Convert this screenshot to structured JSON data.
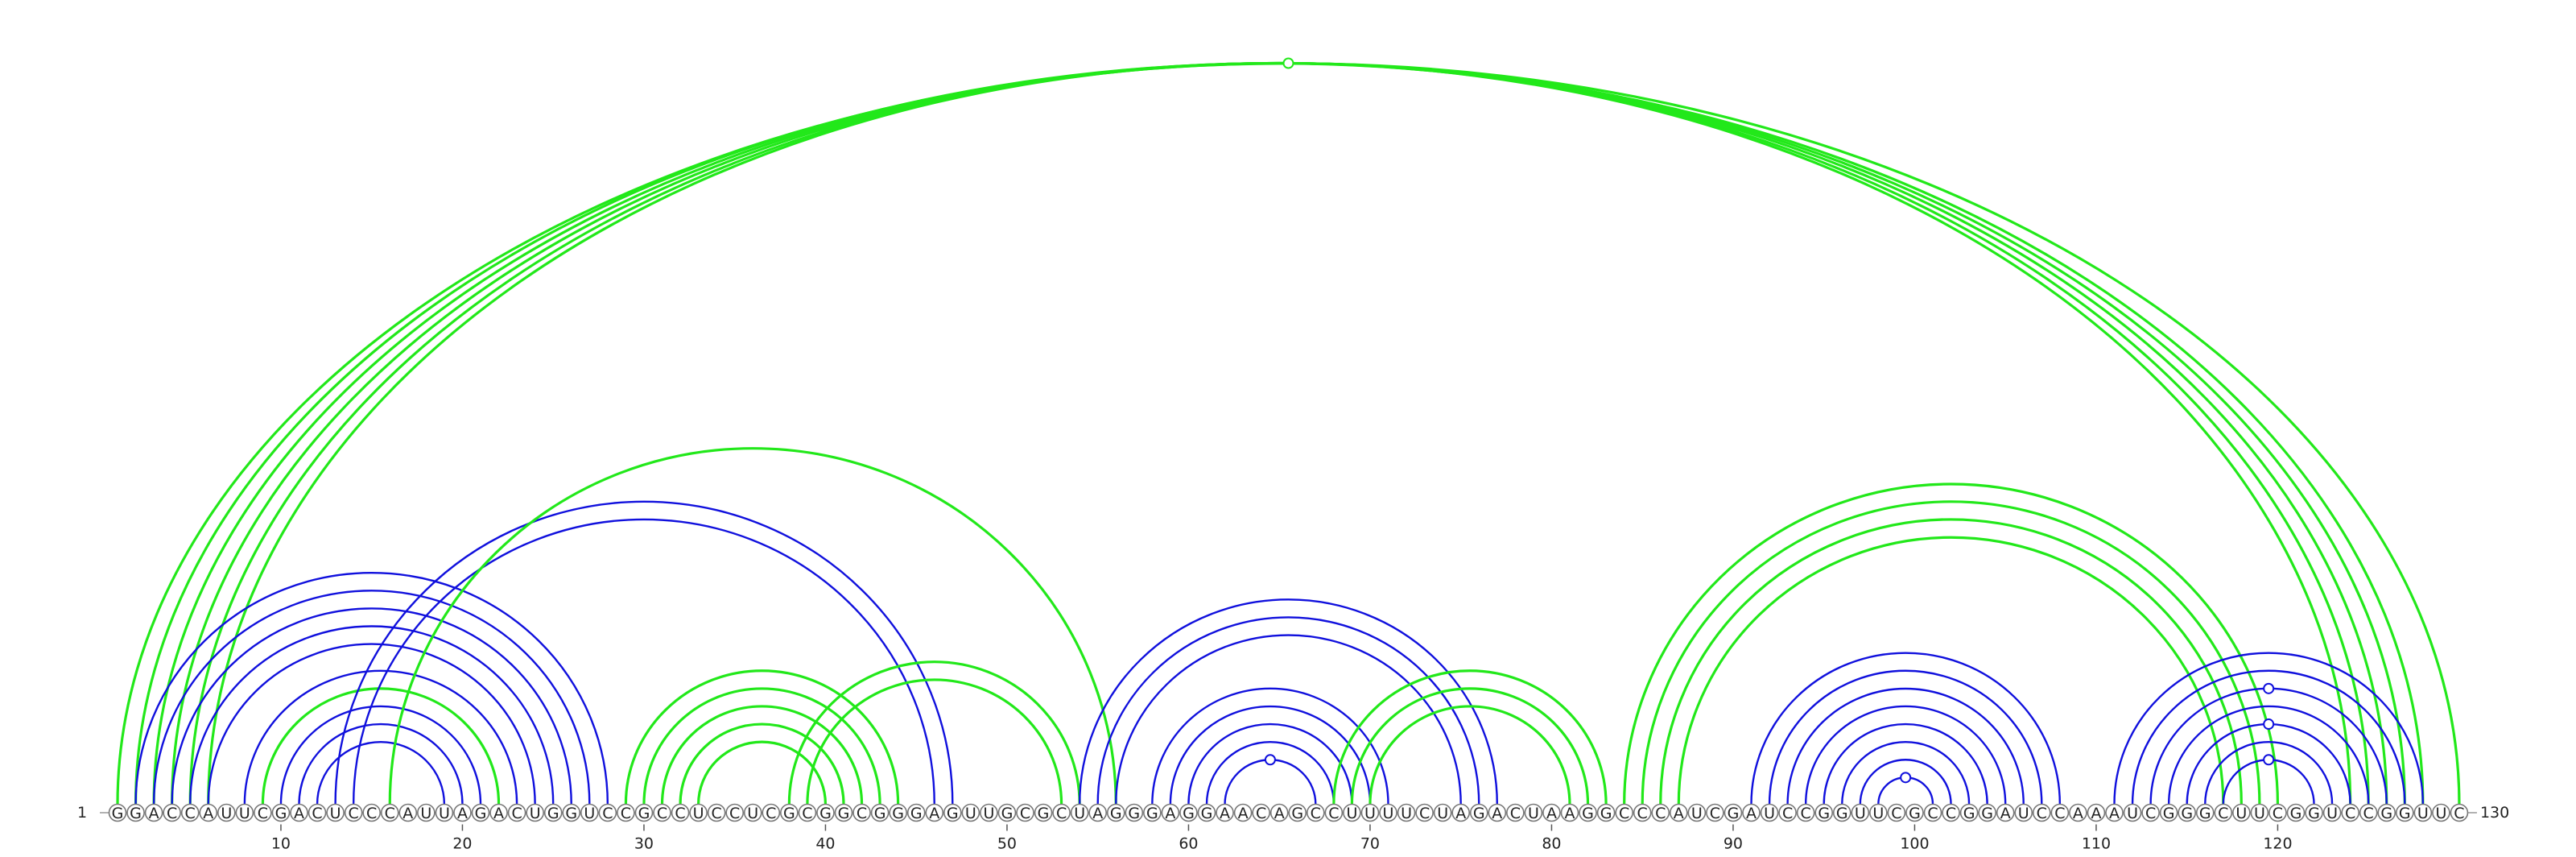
{
  "diagram": {
    "type": "rna-arc-diagram",
    "start_label": "1",
    "end_label": "130",
    "sequence": "GGACCAUUCGACUCCCAUUAGACUGGUCCGCCUCCUCGCGGCGGGAGUUGCGCUAGGGAGGAACAGCCUUUUCUAGACUAAGGCCCAUCGAUCCGGUUCGCCGGAUCCAAAUCGGGCUUCGGUCCGGUUC",
    "ticks": [
      10,
      20,
      30,
      40,
      50,
      60,
      70,
      80,
      90,
      100,
      110,
      120
    ],
    "colors": {
      "blue": "#1010dd",
      "green": "#22e81a",
      "nucleotide_border": "#777777"
    },
    "arcs": [
      {
        "i": 1,
        "j": 130,
        "color": "green"
      },
      {
        "i": 2,
        "j": 128,
        "color": "green"
      },
      {
        "i": 3,
        "j": 127,
        "color": "green"
      },
      {
        "i": 4,
        "j": 126,
        "color": "green"
      },
      {
        "i": 5,
        "j": 125,
        "color": "green"
      },
      {
        "i": 6,
        "j": 124,
        "color": "green"
      },
      {
        "i": 2,
        "j": 28,
        "color": "blue"
      },
      {
        "i": 3,
        "j": 27,
        "color": "blue"
      },
      {
        "i": 4,
        "j": 26,
        "color": "blue"
      },
      {
        "i": 5,
        "j": 25,
        "color": "blue"
      },
      {
        "i": 6,
        "j": 24,
        "color": "blue"
      },
      {
        "i": 8,
        "j": 23,
        "color": "blue"
      },
      {
        "i": 9,
        "j": 22,
        "color": "green"
      },
      {
        "i": 10,
        "j": 21,
        "color": "blue"
      },
      {
        "i": 11,
        "j": 20,
        "color": "blue"
      },
      {
        "i": 12,
        "j": 19,
        "color": "blue"
      },
      {
        "i": 13,
        "j": 47,
        "color": "blue"
      },
      {
        "i": 14,
        "j": 46,
        "color": "blue"
      },
      {
        "i": 16,
        "j": 56,
        "color": "green"
      },
      {
        "i": 29,
        "j": 44,
        "color": "green"
      },
      {
        "i": 30,
        "j": 43,
        "color": "green"
      },
      {
        "i": 31,
        "j": 42,
        "color": "green"
      },
      {
        "i": 32,
        "j": 41,
        "color": "green"
      },
      {
        "i": 33,
        "j": 40,
        "color": "green"
      },
      {
        "i": 38,
        "j": 54,
        "color": "green"
      },
      {
        "i": 39,
        "j": 53,
        "color": "green"
      },
      {
        "i": 54,
        "j": 77,
        "color": "blue"
      },
      {
        "i": 55,
        "j": 76,
        "color": "blue"
      },
      {
        "i": 56,
        "j": 75,
        "color": "blue"
      },
      {
        "i": 58,
        "j": 71,
        "color": "blue"
      },
      {
        "i": 59,
        "j": 70,
        "color": "blue"
      },
      {
        "i": 60,
        "j": 69,
        "color": "blue"
      },
      {
        "i": 61,
        "j": 68,
        "color": "blue"
      },
      {
        "i": 62,
        "j": 67,
        "color": "blue"
      },
      {
        "i": 68,
        "j": 83,
        "color": "green"
      },
      {
        "i": 69,
        "j": 82,
        "color": "green"
      },
      {
        "i": 70,
        "j": 81,
        "color": "green"
      },
      {
        "i": 84,
        "j": 120,
        "color": "green"
      },
      {
        "i": 85,
        "j": 119,
        "color": "green"
      },
      {
        "i": 86,
        "j": 118,
        "color": "green"
      },
      {
        "i": 87,
        "j": 117,
        "color": "green"
      },
      {
        "i": 91,
        "j": 108,
        "color": "blue"
      },
      {
        "i": 92,
        "j": 107,
        "color": "blue"
      },
      {
        "i": 93,
        "j": 106,
        "color": "blue"
      },
      {
        "i": 94,
        "j": 105,
        "color": "blue"
      },
      {
        "i": 95,
        "j": 104,
        "color": "blue"
      },
      {
        "i": 96,
        "j": 103,
        "color": "blue"
      },
      {
        "i": 97,
        "j": 102,
        "color": "blue"
      },
      {
        "i": 98,
        "j": 101,
        "color": "blue"
      },
      {
        "i": 111,
        "j": 128,
        "color": "blue"
      },
      {
        "i": 112,
        "j": 127,
        "color": "blue"
      },
      {
        "i": 113,
        "j": 126,
        "color": "blue"
      },
      {
        "i": 114,
        "j": 125,
        "color": "blue"
      },
      {
        "i": 115,
        "j": 124,
        "color": "blue"
      },
      {
        "i": 116,
        "j": 123,
        "color": "blue"
      },
      {
        "i": 117,
        "j": 122,
        "color": "blue"
      }
    ]
  }
}
